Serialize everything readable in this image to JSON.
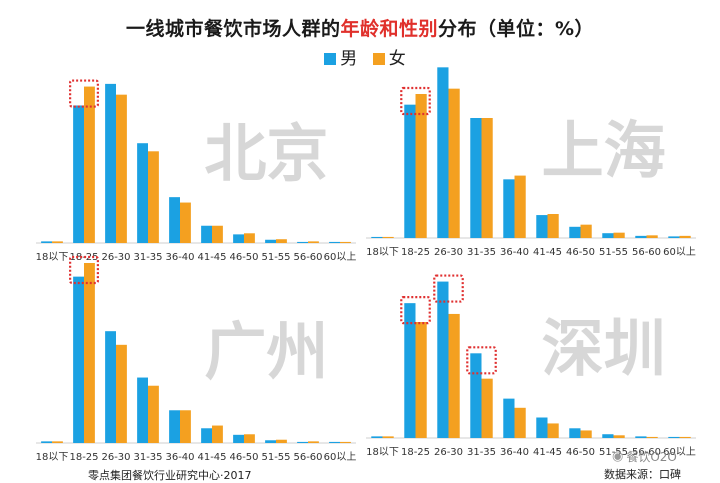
{
  "title": {
    "prefix": "一线城市餐饮市场人群的",
    "hl1": "年龄",
    "mid": "和",
    "hl2": "性别",
    "suffix": "分布（单位：%）"
  },
  "colors": {
    "male": "#1ba1e2",
    "female": "#f4a020",
    "highlight": "#e03030",
    "city_label": "#d7d7d7"
  },
  "legend": {
    "male": "男",
    "female": "女"
  },
  "footer": {
    "left": "零点集团餐饮行业研究中心·2017",
    "right": "数据来源：口碑"
  },
  "watermark": {
    "text": "餐饮O2O",
    "icon": "wechat-icon"
  },
  "chart_data": [
    {
      "type": "bar",
      "city": "北京",
      "categories": [
        "18以下",
        "18-25",
        "26-30",
        "31-35",
        "36-40",
        "41-45",
        "46-50",
        "51-55",
        "56-60",
        "60以上"
      ],
      "ylim": [
        0,
        33
      ],
      "series": [
        {
          "name": "男",
          "values": [
            0.3,
            25.5,
            29.5,
            18.5,
            8.5,
            3.2,
            1.6,
            0.6,
            0.2,
            0.2
          ]
        },
        {
          "name": "女",
          "values": [
            0.3,
            29,
            27.5,
            17,
            7.5,
            3.2,
            1.8,
            0.7,
            0.3,
            0.2
          ]
        }
      ],
      "highlight": [
        "18-25"
      ]
    },
    {
      "type": "bar",
      "city": "上海",
      "categories": [
        "18以下",
        "18-25",
        "26-30",
        "31-35",
        "36-40",
        "41-45",
        "46-50",
        "51-55",
        "56-60",
        "60以上"
      ],
      "ylim": [
        0,
        33
      ],
      "series": [
        {
          "name": "男",
          "values": [
            0.2,
            25,
            32,
            22.5,
            11,
            4.3,
            2.1,
            0.9,
            0.4,
            0.3
          ]
        },
        {
          "name": "女",
          "values": [
            0.2,
            27,
            28,
            22.5,
            11.7,
            4.5,
            2.5,
            1,
            0.5,
            0.4
          ]
        }
      ],
      "highlight": [
        "18-25"
      ]
    },
    {
      "type": "bar",
      "city": "广州",
      "categories": [
        "18以下",
        "18-25",
        "26-30",
        "31-35",
        "36-40",
        "41-45",
        "46-50",
        "51-55",
        "56-60",
        "60以上"
      ],
      "ylim": [
        0,
        33
      ],
      "series": [
        {
          "name": "男",
          "values": [
            0.3,
            30.5,
            20.5,
            12,
            6,
            2.7,
            1.5,
            0.5,
            0.2,
            0.2
          ]
        },
        {
          "name": "女",
          "values": [
            0.3,
            33,
            18,
            10.5,
            6,
            3.2,
            1.6,
            0.6,
            0.3,
            0.2
          ]
        }
      ],
      "highlight": [
        "18-25"
      ]
    },
    {
      "type": "bar",
      "city": "深圳",
      "categories": [
        "18以下",
        "18-25",
        "26-30",
        "31-35",
        "36-40",
        "41-45",
        "46-50",
        "51-55",
        "56-60",
        "60以上"
      ],
      "ylim": [
        0,
        33
      ],
      "series": [
        {
          "name": "男",
          "values": [
            0.3,
            25,
            29,
            15.7,
            7.3,
            3.8,
            1.8,
            0.7,
            0.3,
            0.2
          ]
        },
        {
          "name": "女",
          "values": [
            0.3,
            21.5,
            23,
            11,
            5.6,
            2.7,
            1.4,
            0.5,
            0.2,
            0.2
          ]
        }
      ],
      "highlight": [
        "18-25",
        "26-30",
        "31-35"
      ]
    }
  ]
}
